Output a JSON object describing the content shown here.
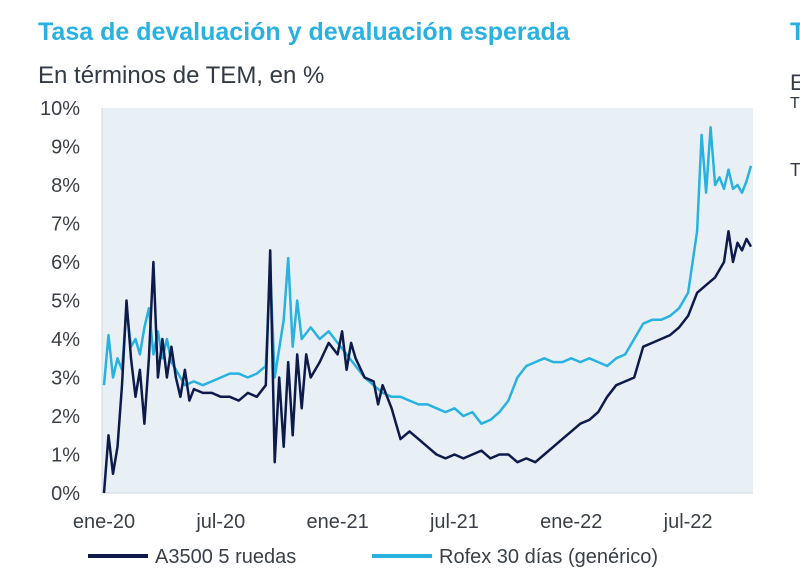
{
  "chart_data": {
    "type": "line",
    "title": "Tasa de devaluación y devaluación esperada",
    "subtitle": "En términos de TEM, en %",
    "x_range": [
      0,
      144
    ],
    "ylim": [
      0,
      10
    ],
    "y_ticks": [
      "0%",
      "1%",
      "2%",
      "3%",
      "4%",
      "5%",
      "6%",
      "7%",
      "8%",
      "9%",
      "10%"
    ],
    "x_ticks": [
      {
        "label": "ene-20",
        "x": 0
      },
      {
        "label": "jul-20",
        "x": 26
      },
      {
        "label": "ene-21",
        "x": 52
      },
      {
        "label": "jul-21",
        "x": 78
      },
      {
        "label": "ene-22",
        "x": 104
      },
      {
        "label": "jul-22",
        "x": 130
      }
    ],
    "series": [
      {
        "name": "A3500 5 ruedas",
        "color": "#0d1a4a",
        "points": [
          [
            0,
            0
          ],
          [
            1,
            1.5
          ],
          [
            2,
            0.5
          ],
          [
            3,
            1.2
          ],
          [
            4,
            2.8
          ],
          [
            5,
            5.0
          ],
          [
            6,
            3.5
          ],
          [
            7,
            2.5
          ],
          [
            8,
            3.2
          ],
          [
            9,
            1.8
          ],
          [
            10,
            3.5
          ],
          [
            11,
            6.0
          ],
          [
            12,
            3.0
          ],
          [
            13,
            4.0
          ],
          [
            14,
            3.0
          ],
          [
            15,
            3.8
          ],
          [
            16,
            3.0
          ],
          [
            17,
            2.5
          ],
          [
            18,
            3.2
          ],
          [
            19,
            2.4
          ],
          [
            20,
            2.7
          ],
          [
            22,
            2.6
          ],
          [
            24,
            2.6
          ],
          [
            26,
            2.5
          ],
          [
            28,
            2.5
          ],
          [
            30,
            2.4
          ],
          [
            32,
            2.6
          ],
          [
            34,
            2.5
          ],
          [
            36,
            2.8
          ],
          [
            37,
            6.3
          ],
          [
            38,
            0.8
          ],
          [
            39,
            3.0
          ],
          [
            40,
            1.2
          ],
          [
            41,
            3.4
          ],
          [
            42,
            1.5
          ],
          [
            43,
            3.6
          ],
          [
            44,
            2.2
          ],
          [
            45,
            3.6
          ],
          [
            46,
            3.0
          ],
          [
            48,
            3.4
          ],
          [
            50,
            3.9
          ],
          [
            52,
            3.6
          ],
          [
            53,
            4.2
          ],
          [
            54,
            3.2
          ],
          [
            55,
            3.9
          ],
          [
            56,
            3.5
          ],
          [
            58,
            3.0
          ],
          [
            60,
            2.9
          ],
          [
            61,
            2.3
          ],
          [
            62,
            2.8
          ],
          [
            64,
            2.2
          ],
          [
            66,
            1.4
          ],
          [
            68,
            1.6
          ],
          [
            70,
            1.4
          ],
          [
            72,
            1.2
          ],
          [
            74,
            1.0
          ],
          [
            76,
            0.9
          ],
          [
            78,
            1.0
          ],
          [
            80,
            0.9
          ],
          [
            82,
            1.0
          ],
          [
            84,
            1.1
          ],
          [
            86,
            0.9
          ],
          [
            88,
            1.0
          ],
          [
            90,
            1.0
          ],
          [
            92,
            0.8
          ],
          [
            94,
            0.9
          ],
          [
            96,
            0.8
          ],
          [
            98,
            1.0
          ],
          [
            100,
            1.2
          ],
          [
            102,
            1.4
          ],
          [
            104,
            1.6
          ],
          [
            106,
            1.8
          ],
          [
            108,
            1.9
          ],
          [
            110,
            2.1
          ],
          [
            112,
            2.5
          ],
          [
            114,
            2.8
          ],
          [
            116,
            2.9
          ],
          [
            118,
            3.0
          ],
          [
            120,
            3.8
          ],
          [
            122,
            3.9
          ],
          [
            124,
            4.0
          ],
          [
            126,
            4.1
          ],
          [
            128,
            4.3
          ],
          [
            130,
            4.6
          ],
          [
            132,
            5.2
          ],
          [
            134,
            5.4
          ],
          [
            136,
            5.6
          ],
          [
            138,
            6.0
          ],
          [
            139,
            6.8
          ],
          [
            140,
            6.0
          ],
          [
            141,
            6.5
          ],
          [
            142,
            6.3
          ],
          [
            143,
            6.6
          ],
          [
            144,
            6.4
          ]
        ]
      },
      {
        "name": "Rofex 30 días (genérico)",
        "color": "#29b1e0",
        "points": [
          [
            0,
            2.8
          ],
          [
            1,
            4.1
          ],
          [
            2,
            3.0
          ],
          [
            3,
            3.5
          ],
          [
            4,
            3.2
          ],
          [
            5,
            4.8
          ],
          [
            6,
            3.8
          ],
          [
            7,
            4.0
          ],
          [
            8,
            3.6
          ],
          [
            9,
            4.3
          ],
          [
            10,
            4.8
          ],
          [
            11,
            3.6
          ],
          [
            12,
            4.2
          ],
          [
            13,
            3.5
          ],
          [
            14,
            4.0
          ],
          [
            15,
            3.4
          ],
          [
            16,
            3.2
          ],
          [
            17,
            3.0
          ],
          [
            18,
            2.8
          ],
          [
            20,
            2.9
          ],
          [
            22,
            2.8
          ],
          [
            24,
            2.9
          ],
          [
            26,
            3.0
          ],
          [
            28,
            3.1
          ],
          [
            30,
            3.1
          ],
          [
            32,
            3.0
          ],
          [
            34,
            3.1
          ],
          [
            36,
            3.3
          ],
          [
            37,
            5.8
          ],
          [
            38,
            3.0
          ],
          [
            40,
            4.5
          ],
          [
            41,
            6.1
          ],
          [
            42,
            3.8
          ],
          [
            43,
            5.0
          ],
          [
            44,
            4.0
          ],
          [
            46,
            4.3
          ],
          [
            48,
            4.0
          ],
          [
            50,
            4.2
          ],
          [
            52,
            3.9
          ],
          [
            54,
            3.6
          ],
          [
            56,
            3.3
          ],
          [
            58,
            3.0
          ],
          [
            60,
            2.8
          ],
          [
            62,
            2.6
          ],
          [
            64,
            2.5
          ],
          [
            66,
            2.5
          ],
          [
            68,
            2.4
          ],
          [
            70,
            2.3
          ],
          [
            72,
            2.3
          ],
          [
            74,
            2.2
          ],
          [
            76,
            2.1
          ],
          [
            78,
            2.2
          ],
          [
            80,
            2.0
          ],
          [
            82,
            2.1
          ],
          [
            84,
            1.8
          ],
          [
            86,
            1.9
          ],
          [
            88,
            2.1
          ],
          [
            90,
            2.4
          ],
          [
            92,
            3.0
          ],
          [
            94,
            3.3
          ],
          [
            96,
            3.4
          ],
          [
            98,
            3.5
          ],
          [
            100,
            3.4
          ],
          [
            102,
            3.4
          ],
          [
            104,
            3.5
          ],
          [
            106,
            3.4
          ],
          [
            108,
            3.5
          ],
          [
            110,
            3.4
          ],
          [
            112,
            3.3
          ],
          [
            114,
            3.5
          ],
          [
            116,
            3.6
          ],
          [
            118,
            4.0
          ],
          [
            120,
            4.4
          ],
          [
            122,
            4.5
          ],
          [
            124,
            4.5
          ],
          [
            126,
            4.6
          ],
          [
            128,
            4.8
          ],
          [
            130,
            5.2
          ],
          [
            131,
            6.0
          ],
          [
            132,
            6.8
          ],
          [
            133,
            9.3
          ],
          [
            134,
            7.8
          ],
          [
            135,
            9.5
          ],
          [
            136,
            8.0
          ],
          [
            137,
            8.2
          ],
          [
            138,
            7.9
          ],
          [
            139,
            8.4
          ],
          [
            140,
            7.9
          ],
          [
            141,
            8.0
          ],
          [
            142,
            7.8
          ],
          [
            143,
            8.1
          ],
          [
            144,
            8.5
          ]
        ]
      }
    ],
    "legend": {
      "position": "bottom"
    }
  },
  "partial_right": {
    "title_fragment": "T",
    "line1_fragment": "E",
    "line2_fragment": "T",
    "line3_fragment": "T"
  }
}
